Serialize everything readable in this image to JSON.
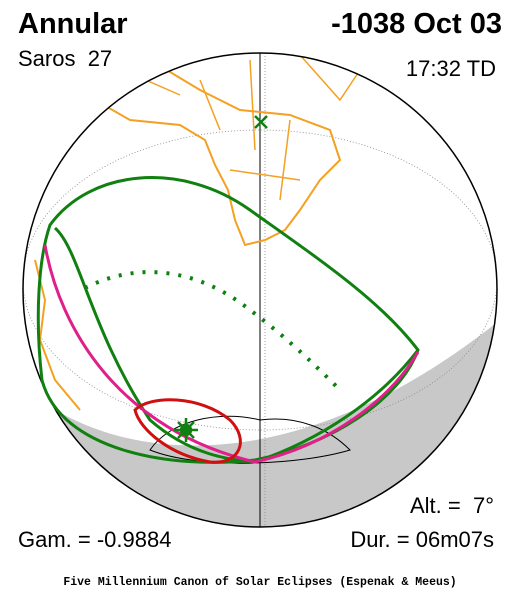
{
  "header": {
    "type": "Annular",
    "date": "-1038 Oct 03",
    "saros": "Saros  27",
    "time": "17:32 TD"
  },
  "parameters": {
    "altitude": "Alt. =  7°",
    "gamma": "Gam. = -0.9884",
    "duration": "Dur. = 06m07s"
  },
  "footer": "Five Millennium Canon of Solar Eclipses (Espenak & Meeus)"
}
